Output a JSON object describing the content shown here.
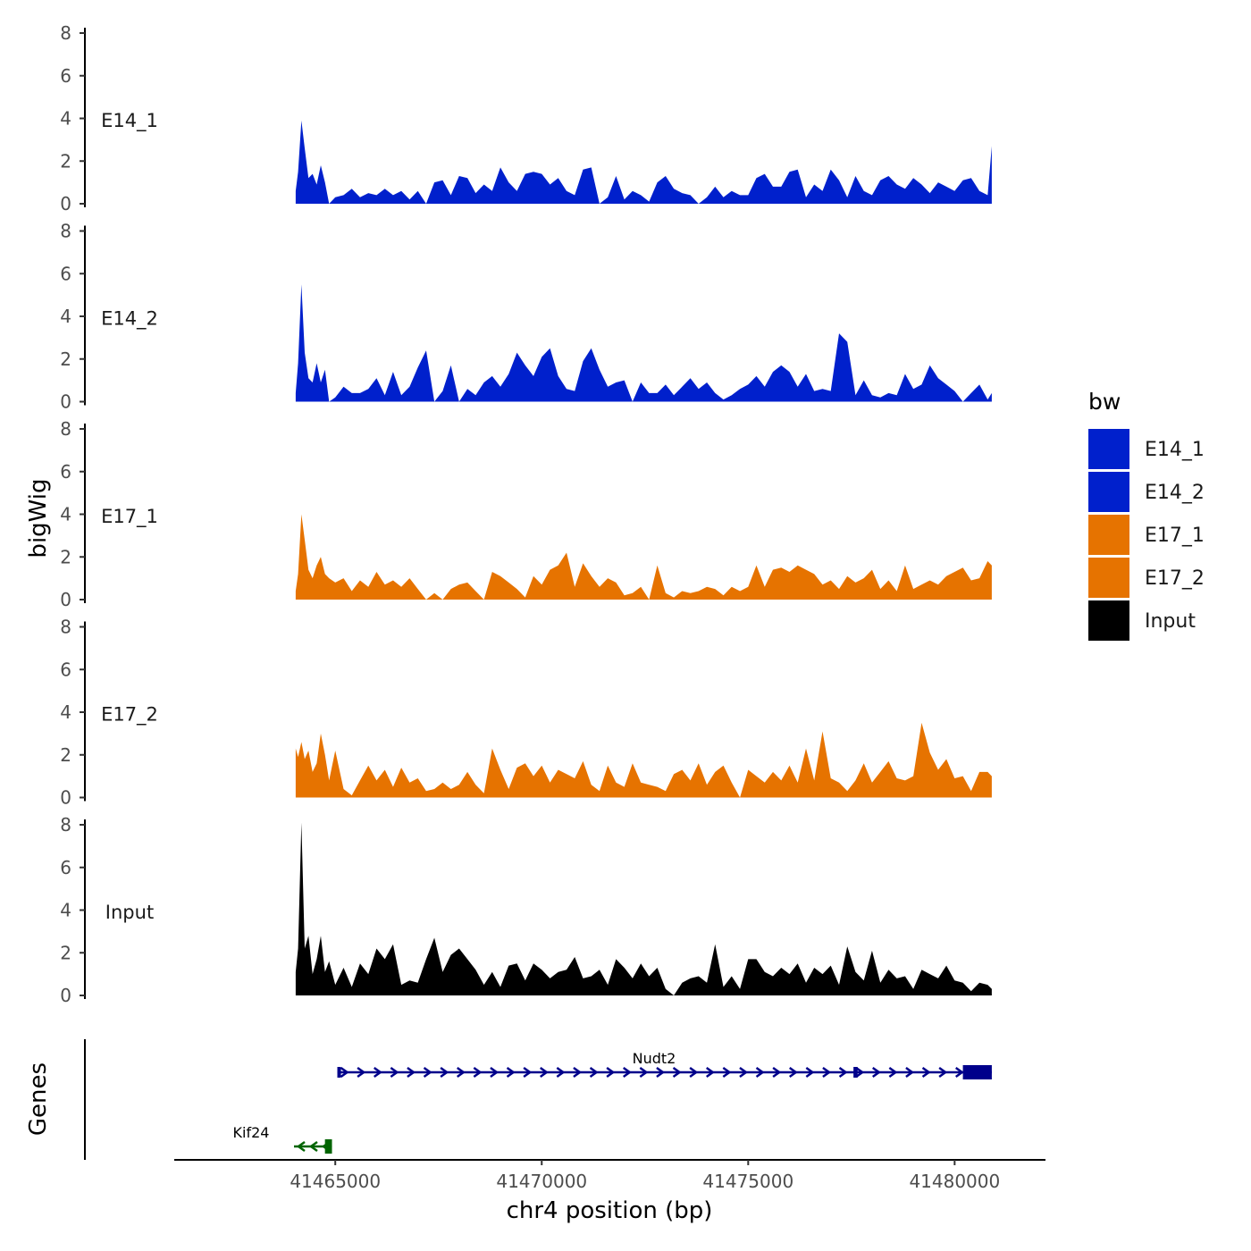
{
  "chart_data": {
    "type": "area",
    "ylabel": "bigWig",
    "genes_label": "Genes",
    "xlabel": "chr4 position (bp)",
    "xlim": [
      41461100,
      41482200
    ],
    "x_ticks": [
      41465000,
      41470000,
      41475000,
      41480000
    ],
    "x_tick_labels": [
      "41465000",
      "41470000",
      "41475000",
      "41480000"
    ],
    "ylim": [
      0,
      8
    ],
    "y_ticks": [
      0,
      2,
      4,
      6,
      8
    ],
    "y_tick_labels": [
      "0",
      "2",
      "4",
      "6",
      "8"
    ],
    "colors": {
      "E14": "#0020cc",
      "E17": "#e67300",
      "Input": "#000000",
      "Nudt2": "#00008b",
      "Kif24": "#006400"
    },
    "legend": {
      "title": "bw",
      "items": [
        {
          "label": "E14_1",
          "color": "#0020cc"
        },
        {
          "label": "E14_2",
          "color": "#0020cc"
        },
        {
          "label": "E17_1",
          "color": "#e67300"
        },
        {
          "label": "E17_2",
          "color": "#e67300"
        },
        {
          "label": "Input",
          "color": "#000000"
        }
      ]
    },
    "tracks": [
      {
        "name": "E14_1",
        "color": "#0020cc",
        "x": [
          41464040,
          41464100,
          41464180,
          41464260,
          41464350,
          41464450,
          41464550,
          41464650,
          41464750,
          41464850,
          41465000,
          41465200,
          41465400,
          41465600,
          41465800,
          41466000,
          41466200,
          41466400,
          41466600,
          41466800,
          41467000,
          41467200,
          41467400,
          41467600,
          41467800,
          41468000,
          41468200,
          41468400,
          41468600,
          41468800,
          41469000,
          41469200,
          41469400,
          41469600,
          41469800,
          41470000,
          41470200,
          41470400,
          41470600,
          41470800,
          41471000,
          41471200,
          41471400,
          41471600,
          41471800,
          41472000,
          41472200,
          41472400,
          41472600,
          41472800,
          41473000,
          41473200,
          41473400,
          41473600,
          41473800,
          41474000,
          41474200,
          41474400,
          41474600,
          41474800,
          41475000,
          41475200,
          41475400,
          41475600,
          41475800,
          41476000,
          41476200,
          41476400,
          41476600,
          41476800,
          41477000,
          41477200,
          41477400,
          41477600,
          41477800,
          41478000,
          41478200,
          41478400,
          41478600,
          41478800,
          41479000,
          41479200,
          41479400,
          41479600,
          41479800,
          41480000,
          41480200,
          41480400,
          41480600,
          41480800,
          41480900
        ],
        "y": [
          0.6,
          1.5,
          3.9,
          2.6,
          1.2,
          1.4,
          0.9,
          1.8,
          1.0,
          0.0,
          0.3,
          0.4,
          0.7,
          0.3,
          0.5,
          0.4,
          0.7,
          0.4,
          0.6,
          0.2,
          0.6,
          0.0,
          1.0,
          1.1,
          0.4,
          1.3,
          1.2,
          0.5,
          0.9,
          0.6,
          1.7,
          1.0,
          0.6,
          1.4,
          1.5,
          1.4,
          0.9,
          1.2,
          0.6,
          0.4,
          1.6,
          1.7,
          0.0,
          0.3,
          1.3,
          0.2,
          0.6,
          0.4,
          0.1,
          1.0,
          1.3,
          0.7,
          0.5,
          0.4,
          0.0,
          0.3,
          0.8,
          0.3,
          0.6,
          0.4,
          0.4,
          1.2,
          1.4,
          0.8,
          0.8,
          1.5,
          1.6,
          0.3,
          0.9,
          0.6,
          1.6,
          1.1,
          0.3,
          1.3,
          0.6,
          0.4,
          1.1,
          1.3,
          0.9,
          0.7,
          1.2,
          0.9,
          0.5,
          1.0,
          0.8,
          0.6,
          1.1,
          1.2,
          0.6,
          0.4,
          2.7
        ]
      },
      {
        "name": "E14_2",
        "color": "#0020cc",
        "x": [
          41464040,
          41464100,
          41464180,
          41464260,
          41464350,
          41464450,
          41464550,
          41464650,
          41464750,
          41464850,
          41465000,
          41465200,
          41465400,
          41465600,
          41465800,
          41466000,
          41466200,
          41466400,
          41466600,
          41466800,
          41467000,
          41467200,
          41467400,
          41467600,
          41467800,
          41468000,
          41468200,
          41468400,
          41468600,
          41468800,
          41469000,
          41469200,
          41469400,
          41469600,
          41469800,
          41470000,
          41470200,
          41470400,
          41470600,
          41470800,
          41471000,
          41471200,
          41471400,
          41471600,
          41471800,
          41472000,
          41472200,
          41472400,
          41472600,
          41472800,
          41473000,
          41473200,
          41473400,
          41473600,
          41473800,
          41474000,
          41474200,
          41474400,
          41474600,
          41474800,
          41475000,
          41475200,
          41475400,
          41475600,
          41475800,
          41476000,
          41476200,
          41476400,
          41476600,
          41476800,
          41477000,
          41477200,
          41477400,
          41477600,
          41477800,
          41478000,
          41478200,
          41478400,
          41478600,
          41478800,
          41479000,
          41479200,
          41479400,
          41479600,
          41479800,
          41480000,
          41480200,
          41480400,
          41480600,
          41480800,
          41480900
        ],
        "y": [
          0.4,
          1.8,
          5.5,
          2.3,
          1.1,
          0.9,
          1.8,
          0.9,
          1.5,
          0.0,
          0.2,
          0.7,
          0.4,
          0.4,
          0.6,
          1.1,
          0.3,
          1.4,
          0.3,
          0.7,
          1.6,
          2.4,
          0.0,
          0.5,
          1.7,
          0.0,
          0.6,
          0.3,
          0.9,
          1.2,
          0.7,
          1.3,
          2.3,
          1.7,
          1.2,
          2.1,
          2.5,
          1.2,
          0.6,
          0.5,
          1.9,
          2.5,
          1.5,
          0.7,
          0.9,
          1.0,
          0.0,
          0.9,
          0.4,
          0.4,
          0.8,
          0.3,
          0.7,
          1.1,
          0.6,
          0.9,
          0.4,
          0.1,
          0.3,
          0.6,
          0.8,
          1.2,
          0.7,
          1.4,
          1.7,
          1.4,
          0.7,
          1.3,
          0.5,
          0.6,
          0.5,
          3.2,
          2.8,
          0.3,
          1.0,
          0.3,
          0.2,
          0.4,
          0.3,
          1.3,
          0.6,
          0.8,
          1.7,
          1.1,
          0.8,
          0.5,
          0.0,
          0.4,
          0.8,
          0.1,
          0.4
        ]
      },
      {
        "name": "E17_1",
        "color": "#e67300",
        "x": [
          41464040,
          41464100,
          41464180,
          41464260,
          41464350,
          41464450,
          41464550,
          41464650,
          41464750,
          41464850,
          41465000,
          41465200,
          41465400,
          41465600,
          41465800,
          41466000,
          41466200,
          41466400,
          41466600,
          41466800,
          41467000,
          41467200,
          41467400,
          41467600,
          41467800,
          41468000,
          41468200,
          41468400,
          41468600,
          41468800,
          41469000,
          41469200,
          41469400,
          41469600,
          41469800,
          41470000,
          41470200,
          41470400,
          41470600,
          41470800,
          41471000,
          41471200,
          41471400,
          41471600,
          41471800,
          41472000,
          41472200,
          41472400,
          41472600,
          41472800,
          41473000,
          41473200,
          41473400,
          41473600,
          41473800,
          41474000,
          41474200,
          41474400,
          41474600,
          41474800,
          41475000,
          41475200,
          41475400,
          41475600,
          41475800,
          41476000,
          41476200,
          41476400,
          41476600,
          41476800,
          41477000,
          41477200,
          41477400,
          41477600,
          41477800,
          41478000,
          41478200,
          41478400,
          41478600,
          41478800,
          41479000,
          41479200,
          41479400,
          41479600,
          41479800,
          41480000,
          41480200,
          41480400,
          41480600,
          41480800,
          41480900
        ],
        "y": [
          0.4,
          1.2,
          4.0,
          2.8,
          1.4,
          1.0,
          1.6,
          2.0,
          1.2,
          1.0,
          0.8,
          1.0,
          0.4,
          0.9,
          0.6,
          1.3,
          0.7,
          0.9,
          0.6,
          1.0,
          0.5,
          0.0,
          0.3,
          0.0,
          0.5,
          0.7,
          0.8,
          0.4,
          0.0,
          1.3,
          1.1,
          0.8,
          0.5,
          0.1,
          1.1,
          0.7,
          1.4,
          1.6,
          2.2,
          0.6,
          1.7,
          1.1,
          0.6,
          1.0,
          0.8,
          0.2,
          0.3,
          0.6,
          0.0,
          1.6,
          0.3,
          0.1,
          0.4,
          0.3,
          0.4,
          0.6,
          0.5,
          0.2,
          0.6,
          0.4,
          0.6,
          1.6,
          0.6,
          1.4,
          1.5,
          1.3,
          1.6,
          1.4,
          1.2,
          0.7,
          0.9,
          0.5,
          1.1,
          0.8,
          1.0,
          1.4,
          0.5,
          0.9,
          0.4,
          1.6,
          0.5,
          0.7,
          0.9,
          0.7,
          1.1,
          1.3,
          1.5,
          0.9,
          1.0,
          1.8,
          1.6
        ]
      },
      {
        "name": "E17_2",
        "color": "#e67300",
        "x": [
          41464040,
          41464100,
          41464180,
          41464260,
          41464350,
          41464450,
          41464550,
          41464650,
          41464750,
          41464850,
          41465000,
          41465200,
          41465400,
          41465600,
          41465800,
          41466000,
          41466200,
          41466400,
          41466600,
          41466800,
          41467000,
          41467200,
          41467400,
          41467600,
          41467800,
          41468000,
          41468200,
          41468400,
          41468600,
          41468800,
          41469000,
          41469200,
          41469400,
          41469600,
          41469800,
          41470000,
          41470200,
          41470400,
          41470600,
          41470800,
          41471000,
          41471200,
          41471400,
          41471600,
          41471800,
          41472000,
          41472200,
          41472400,
          41472600,
          41472800,
          41473000,
          41473200,
          41473400,
          41473600,
          41473800,
          41474000,
          41474200,
          41474400,
          41474600,
          41474800,
          41475000,
          41475200,
          41475400,
          41475600,
          41475800,
          41476000,
          41476200,
          41476400,
          41476600,
          41476800,
          41477000,
          41477200,
          41477400,
          41477600,
          41477800,
          41478000,
          41478200,
          41478400,
          41478600,
          41478800,
          41479000,
          41479200,
          41479400,
          41479600,
          41479800,
          41480000,
          41480200,
          41480400,
          41480600,
          41480800,
          41480900
        ],
        "y": [
          2.3,
          1.9,
          2.6,
          1.8,
          2.2,
          1.2,
          1.6,
          3.0,
          2.0,
          0.8,
          2.2,
          0.4,
          0.1,
          0.8,
          1.5,
          0.8,
          1.3,
          0.5,
          1.4,
          0.7,
          0.9,
          0.3,
          0.4,
          0.7,
          0.4,
          0.6,
          1.2,
          0.6,
          0.2,
          2.3,
          1.3,
          0.4,
          1.4,
          1.6,
          1.0,
          1.5,
          0.7,
          1.3,
          1.1,
          0.9,
          1.7,
          0.6,
          0.3,
          1.5,
          0.7,
          0.5,
          1.6,
          0.7,
          0.6,
          0.5,
          0.3,
          1.1,
          1.3,
          0.8,
          1.6,
          0.6,
          1.2,
          1.5,
          0.7,
          0.0,
          1.3,
          1.0,
          0.7,
          1.2,
          0.8,
          1.5,
          0.7,
          2.3,
          0.8,
          3.1,
          0.9,
          0.7,
          0.3,
          0.8,
          1.6,
          0.7,
          1.2,
          1.7,
          0.9,
          0.8,
          1.0,
          3.5,
          2.1,
          1.3,
          1.8,
          0.9,
          1.0,
          0.3,
          1.2,
          1.2,
          1.0
        ]
      },
      {
        "name": "Input",
        "color": "#000000",
        "x": [
          41464040,
          41464100,
          41464180,
          41464260,
          41464350,
          41464450,
          41464550,
          41464650,
          41464750,
          41464850,
          41465000,
          41465200,
          41465400,
          41465600,
          41465800,
          41466000,
          41466200,
          41466400,
          41466600,
          41466800,
          41467000,
          41467200,
          41467400,
          41467600,
          41467800,
          41468000,
          41468200,
          41468400,
          41468600,
          41468800,
          41469000,
          41469200,
          41469400,
          41469600,
          41469800,
          41470000,
          41470200,
          41470400,
          41470600,
          41470800,
          41471000,
          41471200,
          41471400,
          41471600,
          41471800,
          41472000,
          41472200,
          41472400,
          41472600,
          41472800,
          41473000,
          41473200,
          41473400,
          41473600,
          41473800,
          41474000,
          41474200,
          41474400,
          41474600,
          41474800,
          41475000,
          41475200,
          41475400,
          41475600,
          41475800,
          41476000,
          41476200,
          41476400,
          41476600,
          41476800,
          41477000,
          41477200,
          41477400,
          41477600,
          41477800,
          41478000,
          41478200,
          41478400,
          41478600,
          41478800,
          41479000,
          41479200,
          41479400,
          41479600,
          41479800,
          41480000,
          41480200,
          41480400,
          41480600,
          41480800,
          41480900
        ],
        "y": [
          1.1,
          2.2,
          8.1,
          2.2,
          2.8,
          1.0,
          1.7,
          2.8,
          1.1,
          1.6,
          0.5,
          1.3,
          0.4,
          1.5,
          1.0,
          2.2,
          1.7,
          2.4,
          0.5,
          0.7,
          0.6,
          1.7,
          2.7,
          1.1,
          1.9,
          2.2,
          1.7,
          1.2,
          0.5,
          1.1,
          0.4,
          1.4,
          1.5,
          0.7,
          1.5,
          1.2,
          0.8,
          1.1,
          1.2,
          1.8,
          0.8,
          0.9,
          1.2,
          0.5,
          1.7,
          1.3,
          0.8,
          1.5,
          0.9,
          1.3,
          0.3,
          0.0,
          0.6,
          0.8,
          0.9,
          0.6,
          2.4,
          0.4,
          0.9,
          0.3,
          1.7,
          1.7,
          1.1,
          0.9,
          1.3,
          1.0,
          1.5,
          0.6,
          1.3,
          1.0,
          1.4,
          0.5,
          2.3,
          1.1,
          0.7,
          2.1,
          0.6,
          1.2,
          0.8,
          0.9,
          0.3,
          1.2,
          1.0,
          0.8,
          1.4,
          0.7,
          0.6,
          0.2,
          0.6,
          0.5,
          0.3
        ]
      }
    ],
    "genes": [
      {
        "name": "Nudt2",
        "strand": "+",
        "start": 41465050,
        "end": 41480900,
        "exons": [
          [
            41465050,
            41465120
          ],
          [
            41477550,
            41477650
          ],
          [
            41480200,
            41480900
          ]
        ],
        "color": "#00008b"
      },
      {
        "name": "Kif24",
        "strand": "-",
        "start": 41464000,
        "end": 41464920,
        "exons": [
          [
            41464750,
            41464920
          ]
        ],
        "color": "#006400"
      }
    ]
  }
}
